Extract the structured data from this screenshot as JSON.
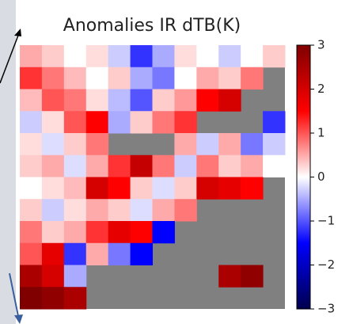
{
  "chart_data": {
    "type": "heatmap",
    "title": "Anomalies IR dTB(K)",
    "colormap": "seismic",
    "mask_color": "#808080",
    "z": [
      [
        0.5,
        0.3,
        0,
        0.2,
        -0.3,
        -1.2,
        -0.5,
        0.2,
        0,
        -0.3,
        0,
        0.3
      ],
      [
        1.2,
        0.8,
        0.4,
        0,
        0.3,
        -0.5,
        -0.8,
        0,
        0.5,
        0.3,
        0.8,
        null
      ],
      [
        0.4,
        1.0,
        0.8,
        0.2,
        -0.4,
        -1.0,
        0.3,
        0.6,
        1.5,
        2.0,
        null,
        null
      ],
      [
        -0.3,
        0.2,
        1.0,
        1.5,
        -0.5,
        0.3,
        0.8,
        1.2,
        null,
        null,
        null,
        -1.2
      ],
      [
        0.2,
        -0.2,
        0.3,
        0.8,
        null,
        null,
        null,
        0.5,
        -0.3,
        0.5,
        -0.8,
        -0.3
      ],
      [
        0.3,
        0.5,
        -0.2,
        0.5,
        1.2,
        2.2,
        0.8,
        -0.3,
        0.8,
        0.3,
        0.5,
        0
      ],
      [
        0,
        0.2,
        0.4,
        2.0,
        1.5,
        0.3,
        -0.2,
        0.3,
        2.0,
        1.8,
        1.5,
        null
      ],
      [
        0.3,
        -0.3,
        0.2,
        0.5,
        0.3,
        -0.2,
        0.5,
        0.8,
        null,
        null,
        null,
        null
      ],
      [
        0.8,
        0.3,
        0.5,
        1.2,
        1.8,
        1.5,
        -1.5,
        null,
        null,
        null,
        null,
        null
      ],
      [
        1.0,
        1.8,
        -1.2,
        0.5,
        -0.8,
        -1.5,
        null,
        null,
        null,
        null,
        null,
        null
      ],
      [
        2.5,
        2.0,
        -0.5,
        null,
        null,
        null,
        null,
        null,
        null,
        2.5,
        2.8,
        null
      ],
      [
        3.0,
        2.8,
        2.5,
        null,
        null,
        null,
        null,
        null,
        null,
        null,
        null,
        null
      ]
    ],
    "zlim": [
      -3,
      3
    ],
    "zticks": [
      {
        "value": -3,
        "label": "−3"
      },
      {
        "value": -2,
        "label": "−2"
      },
      {
        "value": -1,
        "label": "−1"
      },
      0,
      1,
      2,
      3
    ]
  }
}
